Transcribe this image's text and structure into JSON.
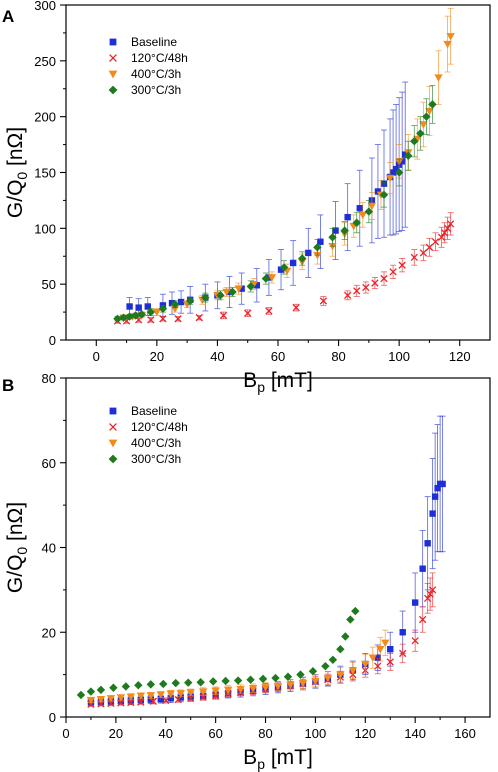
{
  "chart_data": [
    {
      "type": "scatter",
      "panel_label": "A",
      "xlabel": "B_p [mT]",
      "ylabel": "G/Q_0 [nΩ]",
      "xlim": [
        -10,
        130
      ],
      "ylim": [
        0,
        300
      ],
      "xticks": [
        0,
        20,
        40,
        60,
        80,
        100,
        120
      ],
      "yticks": [
        0,
        50,
        100,
        150,
        200,
        250,
        300
      ],
      "legend_position": "top-left",
      "grid": false,
      "series": [
        {
          "name": "Baseline",
          "marker": "square",
          "color": "#1f2fd6",
          "x": [
            11,
            14,
            17,
            22,
            25,
            28,
            31,
            36,
            40,
            44,
            48,
            53,
            57,
            61,
            65,
            70,
            74,
            79,
            83,
            87,
            91,
            93,
            95,
            97,
            98,
            99,
            100,
            101,
            102
          ],
          "y": [
            30,
            29,
            30,
            31,
            33,
            34,
            36,
            38,
            40,
            43,
            46,
            49,
            56,
            63,
            69,
            78,
            88,
            98,
            110,
            118,
            125,
            133,
            140,
            146,
            150,
            153,
            157,
            160,
            166
          ],
          "err": [
            8,
            8,
            8,
            10,
            10,
            10,
            12,
            12,
            12,
            14,
            14,
            15,
            16,
            18,
            20,
            22,
            24,
            26,
            30,
            34,
            38,
            42,
            48,
            52,
            56,
            58,
            60,
            62,
            65
          ]
        },
        {
          "name": "120°C/48h",
          "marker": "x",
          "color": "#e8242a",
          "x": [
            7,
            10,
            14,
            18,
            22,
            27,
            34,
            42,
            50,
            57,
            66,
            75,
            83,
            86,
            89,
            92,
            95,
            98,
            101,
            105,
            108,
            110,
            112,
            114,
            115,
            116,
            117
          ],
          "y": [
            17,
            17,
            18,
            18,
            19,
            19,
            20,
            22,
            24,
            26,
            29,
            35,
            40,
            44,
            47,
            51,
            55,
            61,
            67,
            74,
            78,
            83,
            88,
            92,
            96,
            100,
            104
          ],
          "err": [
            2,
            2,
            2,
            2,
            2,
            2,
            2,
            3,
            3,
            3,
            3,
            4,
            4,
            5,
            5,
            5,
            6,
            6,
            6,
            7,
            7,
            8,
            8,
            9,
            9,
            10,
            10
          ]
        },
        {
          "name": "400°C/3h",
          "marker": "triangle-down",
          "color": "#f28a1c",
          "x": [
            9,
            12,
            15,
            20,
            26,
            30,
            35,
            40,
            43,
            47,
            52,
            58,
            63,
            68,
            73,
            78,
            82,
            85,
            88,
            91,
            94,
            97,
            100,
            103,
            106,
            108,
            110,
            113,
            116,
            117
          ],
          "y": [
            20,
            21,
            22,
            25,
            28,
            32,
            36,
            40,
            43,
            46,
            50,
            56,
            62,
            70,
            76,
            84,
            95,
            102,
            112,
            120,
            130,
            145,
            160,
            168,
            180,
            193,
            205,
            235,
            265,
            272
          ],
          "err": [
            2,
            2,
            2,
            3,
            3,
            3,
            4,
            4,
            4,
            5,
            5,
            5,
            6,
            7,
            8,
            9,
            10,
            10,
            11,
            12,
            13,
            14,
            15,
            16,
            18,
            20,
            22,
            24,
            25,
            25
          ]
        },
        {
          "name": "300°C/3h",
          "marker": "diamond",
          "color": "#1f7a1f",
          "x": [
            7,
            9,
            11,
            13,
            15,
            18,
            22,
            26,
            31,
            36,
            41,
            45,
            51,
            56,
            62,
            68,
            73,
            78,
            82,
            86,
            90,
            95,
            100,
            103,
            105,
            107,
            109,
            111
          ],
          "y": [
            19,
            20,
            21,
            22,
            23,
            25,
            28,
            32,
            35,
            38,
            40,
            43,
            48,
            55,
            65,
            73,
            83,
            92,
            98,
            105,
            115,
            130,
            150,
            165,
            178,
            185,
            200,
            211
          ],
          "err": [
            2,
            2,
            2,
            2,
            2,
            3,
            3,
            3,
            3,
            4,
            4,
            4,
            5,
            5,
            6,
            6,
            7,
            8,
            8,
            9,
            10,
            11,
            12,
            13,
            14,
            15,
            16,
            17
          ]
        }
      ]
    },
    {
      "type": "scatter",
      "panel_label": "B",
      "xlabel": "B_p [mT]",
      "ylabel": "G/Q_0 [nΩ]",
      "xlim": [
        0,
        170
      ],
      "ylim": [
        0,
        80
      ],
      "xticks": [
        0,
        20,
        40,
        60,
        80,
        100,
        120,
        140,
        160
      ],
      "yticks": [
        0,
        20,
        40,
        60,
        80
      ],
      "legend_position": "top-left",
      "grid": false,
      "series": [
        {
          "name": "Baseline",
          "marker": "square",
          "color": "#1f2fd6",
          "x": [
            10,
            14,
            18,
            22,
            26,
            30,
            34,
            38,
            42,
            46,
            50,
            55,
            60,
            65,
            70,
            75,
            80,
            85,
            90,
            95,
            100,
            105,
            110,
            115,
            120,
            125,
            130,
            135,
            140,
            143,
            145,
            147,
            148,
            149,
            150,
            151
          ],
          "y": [
            3.5,
            3.6,
            3.7,
            3.8,
            3.9,
            4.0,
            4.1,
            4.2,
            4.4,
            4.6,
            4.8,
            5.0,
            5.3,
            5.6,
            5.9,
            6.2,
            6.6,
            7.0,
            7.4,
            7.9,
            8.4,
            9.0,
            10,
            11,
            12.5,
            14,
            16,
            20,
            27,
            35,
            41,
            48,
            52,
            54,
            55,
            55
          ],
          "err": [
            0.8,
            0.8,
            0.8,
            0.8,
            0.9,
            0.9,
            0.9,
            0.9,
            1,
            1,
            1,
            1,
            1.1,
            1.1,
            1.2,
            1.2,
            1.3,
            1.3,
            1.4,
            1.5,
            1.6,
            1.7,
            2,
            2.2,
            2.5,
            3,
            4,
            5,
            7,
            9,
            11,
            13,
            15,
            15,
            16,
            16
          ]
        },
        {
          "name": "120°C/48h",
          "marker": "x",
          "color": "#e8242a",
          "x": [
            10,
            14,
            18,
            22,
            26,
            30,
            35,
            40,
            45,
            50,
            55,
            60,
            65,
            70,
            75,
            80,
            85,
            90,
            95,
            100,
            105,
            110,
            115,
            120,
            125,
            130,
            135,
            140,
            143,
            145,
            146,
            147
          ],
          "y": [
            3.0,
            3.1,
            3.2,
            3.3,
            3.4,
            3.5,
            3.7,
            3.9,
            4.1,
            4.4,
            4.7,
            5.0,
            5.4,
            5.8,
            6.2,
            6.6,
            7.0,
            7.4,
            7.8,
            8.3,
            8.8,
            9.4,
            10,
            11,
            12,
            13,
            15,
            18,
            23,
            28,
            29,
            30
          ],
          "err": [
            0.5,
            0.5,
            0.5,
            0.5,
            0.5,
            0.5,
            0.6,
            0.6,
            0.6,
            0.7,
            0.7,
            0.7,
            0.8,
            0.8,
            0.9,
            0.9,
            1,
            1,
            1.1,
            1.2,
            1.3,
            1.4,
            1.5,
            1.6,
            1.8,
            2,
            2.2,
            2.5,
            3,
            3.5,
            3.8,
            4
          ]
        },
        {
          "name": "400°C/3h",
          "marker": "triangle-down",
          "color": "#f28a1c",
          "x": [
            10,
            14,
            18,
            22,
            26,
            30,
            34,
            38,
            42,
            46,
            50,
            55,
            60,
            65,
            70,
            75,
            80,
            85,
            90,
            95,
            100,
            105,
            110,
            115,
            120,
            123,
            126,
            128
          ],
          "y": [
            4.0,
            4.2,
            4.4,
            4.6,
            4.8,
            5.0,
            5.1,
            5.3,
            5.5,
            5.6,
            5.8,
            6.0,
            6.2,
            6.4,
            6.6,
            6.8,
            7.0,
            7.3,
            7.6,
            8.0,
            8.5,
            9.2,
            10,
            11,
            12.5,
            14,
            16,
            17.5
          ],
          "err": [
            0.6,
            0.6,
            0.6,
            0.6,
            0.7,
            0.7,
            0.7,
            0.7,
            0.8,
            0.8,
            0.8,
            0.9,
            0.9,
            1,
            1,
            1,
            1.1,
            1.1,
            1.2,
            1.3,
            1.4,
            1.5,
            1.7,
            1.9,
            2.2,
            2.5,
            2.8,
            3
          ]
        },
        {
          "name": "300°C/3h",
          "marker": "diamond",
          "color": "#1f7a1f",
          "x": [
            6,
            10,
            14,
            19,
            24,
            29,
            34,
            39,
            44,
            49,
            54,
            59,
            64,
            69,
            74,
            79,
            84,
            89,
            94,
            99,
            104,
            107,
            110,
            112,
            114,
            116
          ],
          "y": [
            5.2,
            6.0,
            6.4,
            6.9,
            7.2,
            7.5,
            7.7,
            7.8,
            8.0,
            8.1,
            8.2,
            8.4,
            8.5,
            8.6,
            8.8,
            9.0,
            9.2,
            9.5,
            10,
            10.8,
            12,
            13.5,
            16,
            19,
            23,
            25
          ],
          "err": [
            0,
            0,
            0,
            0,
            0,
            0,
            0,
            0,
            0,
            0,
            0,
            0,
            0,
            0,
            0,
            0,
            0,
            0,
            0,
            0,
            0,
            0,
            0,
            0,
            0,
            0
          ]
        }
      ]
    }
  ]
}
